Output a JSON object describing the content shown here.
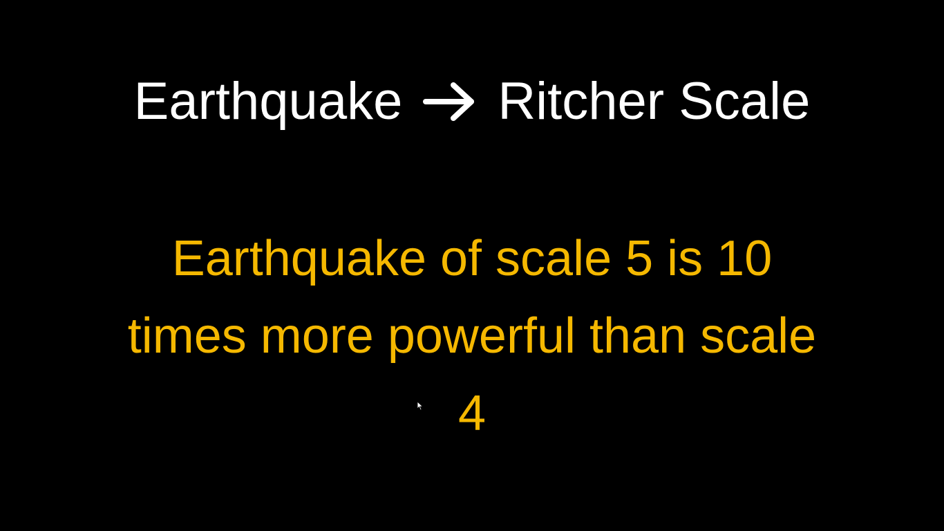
{
  "slide": {
    "title_left": "Earthquake",
    "title_arrow_icon": "right-arrow-icon",
    "title_right": "Ritcher Scale",
    "body_lines": [
      "Earthquake of scale 5 is 10",
      "times more powerful than scale",
      "4"
    ]
  },
  "colors": {
    "background": "#000000",
    "title": "#ffffff",
    "body": "#f5b800"
  }
}
